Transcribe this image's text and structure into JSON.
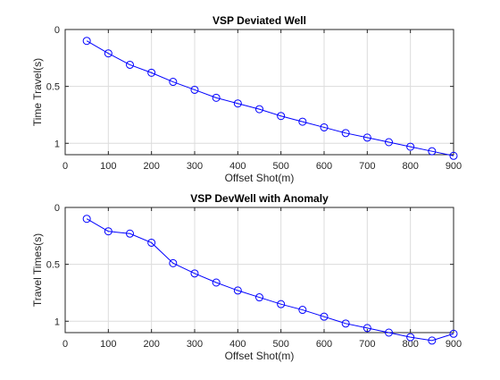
{
  "chart_data": [
    {
      "type": "line",
      "title": "VSP Deviated Well",
      "xlabel": "Offset Shot(m)",
      "ylabel": "Time Travel(s)",
      "xlim": [
        0,
        900
      ],
      "ylim": [
        0,
        1.1
      ],
      "y_reversed": true,
      "grid": true,
      "x_ticks": [
        0,
        100,
        200,
        300,
        400,
        500,
        600,
        700,
        800,
        900
      ],
      "x_tick_labels": [
        "0",
        "100",
        "200",
        "300",
        "400",
        "500",
        "600",
        "700",
        "800",
        "900"
      ],
      "y_ticks": [
        0,
        0.5,
        1
      ],
      "y_tick_labels": [
        "0",
        "0.5",
        "1"
      ],
      "line_color": "#0000ff",
      "marker": "circle",
      "series": [
        {
          "x": [
            50,
            100,
            150,
            200,
            250,
            300,
            350,
            400,
            450,
            500,
            550,
            600,
            650,
            700,
            750,
            800,
            850,
            900
          ],
          "values": [
            0.1,
            0.21,
            0.31,
            0.38,
            0.46,
            0.53,
            0.6,
            0.65,
            0.7,
            0.76,
            0.81,
            0.86,
            0.91,
            0.95,
            0.99,
            1.03,
            1.07,
            1.11
          ]
        }
      ]
    },
    {
      "type": "line",
      "title": "VSP DevWell with Anomaly",
      "xlabel": "Offset Shot(m)",
      "ylabel": "Travel Times(s)",
      "xlim": [
        0,
        900
      ],
      "ylim": [
        0,
        1.1
      ],
      "y_reversed": true,
      "grid": true,
      "x_ticks": [
        0,
        100,
        200,
        300,
        400,
        500,
        600,
        700,
        800,
        900
      ],
      "x_tick_labels": [
        "0",
        "100",
        "200",
        "300",
        "400",
        "500",
        "600",
        "700",
        "800",
        "900"
      ],
      "y_ticks": [
        0,
        0.5,
        1
      ],
      "y_tick_labels": [
        "0",
        "0.5",
        "1"
      ],
      "line_color": "#0000ff",
      "marker": "circle",
      "series": [
        {
          "x": [
            50,
            100,
            150,
            200,
            250,
            300,
            350,
            400,
            450,
            500,
            550,
            600,
            650,
            700,
            750,
            800,
            850,
            900
          ],
          "values": [
            0.1,
            0.21,
            0.23,
            0.31,
            0.49,
            0.58,
            0.66,
            0.73,
            0.79,
            0.85,
            0.9,
            0.96,
            1.02,
            1.06,
            1.1,
            1.14,
            1.17,
            1.11
          ]
        }
      ]
    }
  ]
}
